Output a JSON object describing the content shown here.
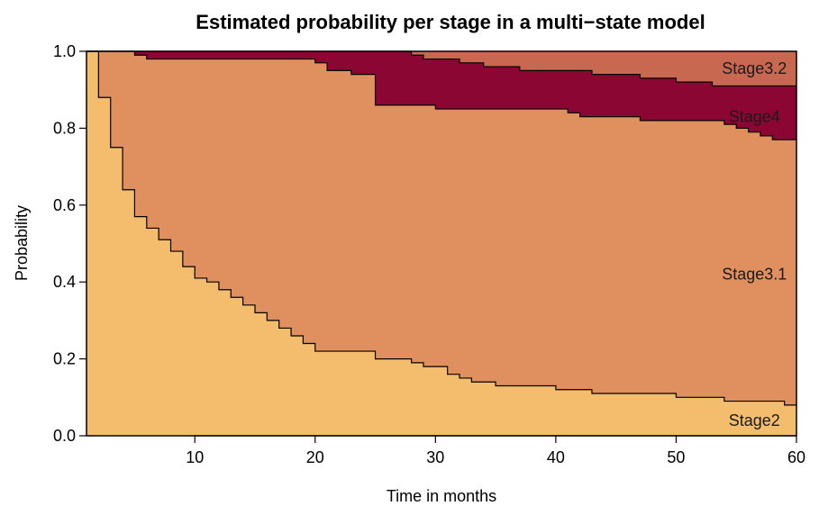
{
  "chart_data": {
    "type": "area",
    "title": "Estimated probability per stage in a multi−state model",
    "xlabel": "Time in months",
    "ylabel": "Probability",
    "xlim": [
      1,
      60
    ],
    "ylim": [
      0,
      1
    ],
    "xticks": [
      "10",
      "20",
      "30",
      "40",
      "50",
      "60"
    ],
    "yticks": [
      "0.0",
      "0.2",
      "0.4",
      "0.6",
      "0.8",
      "1.0"
    ],
    "stacked": true,
    "step": true,
    "series": [
      {
        "name": "Stage2",
        "color": "#F4BD6E",
        "x": [
          1,
          2,
          3,
          4,
          5,
          6,
          7,
          8,
          9,
          10,
          11,
          12,
          13,
          14,
          15,
          16,
          17,
          18,
          19,
          20,
          25,
          28,
          29,
          31,
          32,
          33,
          35,
          40,
          41,
          43,
          49,
          50,
          52,
          54,
          56,
          59,
          60
        ],
        "cum": [
          1.0,
          0.88,
          0.75,
          0.64,
          0.57,
          0.54,
          0.51,
          0.48,
          0.44,
          0.41,
          0.4,
          0.38,
          0.36,
          0.34,
          0.32,
          0.3,
          0.28,
          0.26,
          0.24,
          0.22,
          0.2,
          0.19,
          0.18,
          0.16,
          0.15,
          0.14,
          0.13,
          0.12,
          0.12,
          0.11,
          0.11,
          0.1,
          0.1,
          0.09,
          0.09,
          0.08,
          0.08
        ]
      },
      {
        "name": "Stage3.1",
        "color": "#E0905F",
        "x": [
          1,
          2,
          3,
          4,
          5,
          6,
          20,
          21,
          23,
          25,
          30,
          40,
          41,
          42,
          43,
          47,
          54,
          55,
          56,
          57,
          58,
          60
        ],
        "cum": [
          1.0,
          1.0,
          1.0,
          1.0,
          0.99,
          0.98,
          0.97,
          0.95,
          0.94,
          0.86,
          0.85,
          0.85,
          0.84,
          0.83,
          0.83,
          0.82,
          0.81,
          0.8,
          0.79,
          0.78,
          0.77,
          0.77
        ]
      },
      {
        "name": "Stage4",
        "color": "#8C0634",
        "x": [
          1,
          27,
          28,
          29,
          30,
          32,
          34,
          37,
          43,
          47,
          50,
          53,
          60
        ],
        "cum": [
          1.0,
          1.0,
          0.99,
          0.98,
          0.98,
          0.97,
          0.96,
          0.95,
          0.94,
          0.93,
          0.92,
          0.91,
          0.91
        ]
      },
      {
        "name": "Stage3.2",
        "color": "#C86850",
        "x": [
          1,
          60
        ],
        "cum": [
          1.0,
          1.0
        ]
      }
    ],
    "labels": [
      {
        "text": "Stage3.2",
        "x": 56.5,
        "y": 0.955
      },
      {
        "text": "Stage4",
        "x": 56.5,
        "y": 0.83
      },
      {
        "text": "Stage3.1",
        "x": 56.5,
        "y": 0.42
      },
      {
        "text": "Stage2",
        "x": 56.5,
        "y": 0.04
      }
    ]
  }
}
